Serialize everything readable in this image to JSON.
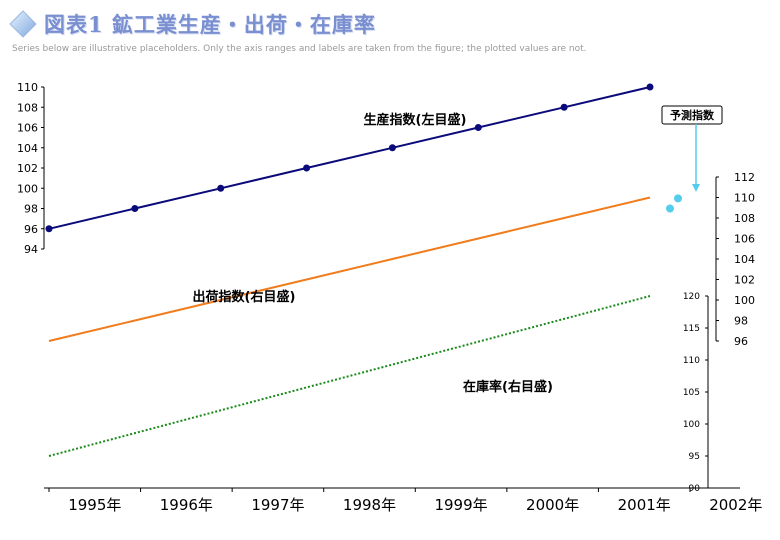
{
  "title": "図表1 鉱工業生産・出荷・在庫率",
  "note": "Series below are illustrative placeholders. Only the axis ranges and labels are taken from the figure; the plotted values are not.",
  "colors": {
    "production": "#0a0a7a",
    "shipments": "#f07c1c",
    "inventory": "#1a8a1a",
    "forecast": "#55ccee",
    "title": "#7a8fd0"
  },
  "forecast_callout": {
    "label": "予測指数"
  },
  "chart_data": {
    "type": "line",
    "x_ticks": [
      "1995年",
      "1996年",
      "1997年",
      "1998年",
      "1999年",
      "2000年",
      "2001年",
      "2002年"
    ],
    "x_range": [
      "1995-01",
      "2002-02"
    ],
    "axes": {
      "left": {
        "ticks": [
          "94",
          "96",
          "98",
          "100",
          "102",
          "104",
          "106",
          "108",
          "110"
        ],
        "range": [
          94,
          110
        ]
      },
      "right_upper": {
        "ticks": [
          "96",
          "98",
          "100",
          "102",
          "104",
          "106",
          "108",
          "110",
          "112"
        ],
        "range": [
          96,
          112
        ]
      },
      "right_lower": {
        "ticks": [
          "90",
          "95",
          "100",
          "105",
          "110",
          "115",
          "120"
        ],
        "range": [
          90,
          120
        ]
      }
    },
    "series": [
      {
        "name": "生産指数(左目盛)",
        "axis": "left",
        "style": "line-markers",
        "illustrative": true,
        "values": [
          [
            96,
            98,
            100,
            102,
            104,
            106,
            108,
            110
          ]
        ]
      },
      {
        "name": "出荷指数(右目盛)",
        "axis": "right_upper",
        "style": "line",
        "illustrative": true,
        "values": [
          [
            96,
            98,
            100,
            102,
            104,
            106,
            108,
            110
          ]
        ]
      },
      {
        "name": "在庫率(右目盛)",
        "axis": "right_lower",
        "style": "dotted",
        "illustrative": true,
        "values": [
          [
            95,
            100,
            105,
            110,
            115,
            120
          ]
        ]
      },
      {
        "name": "予測指数",
        "axis": "left",
        "style": "forecast-markers",
        "illustrative": true,
        "values": [
          [
            98,
            99
          ]
        ]
      }
    ]
  }
}
